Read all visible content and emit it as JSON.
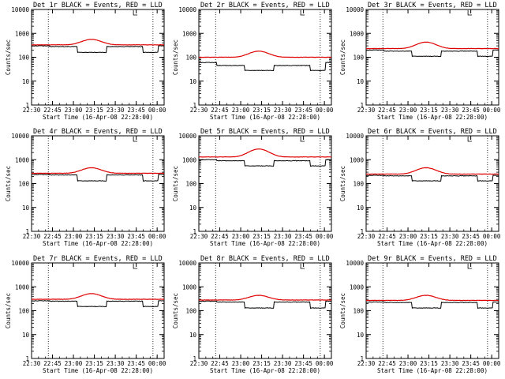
{
  "figure": {
    "xlabel": "Start Time (16-Apr-08 22:28:00)",
    "ylabel": "Counts/sec",
    "x_tick_labels": [
      "22:30",
      "22:45",
      "23:00",
      "23:15",
      "23:30",
      "23:45",
      "00:00"
    ],
    "y_tick_labels": [
      "1",
      "10",
      "100",
      "1000",
      "10000"
    ],
    "series_colors": {
      "events": "#000000",
      "lld": "#e00000"
    }
  },
  "chart_data": [
    {
      "type": "line",
      "title": "Det 1r BLACK = Events, RED = LLD",
      "y_log": true,
      "ylim": [
        1,
        10000
      ],
      "xlim": [
        "22:30",
        "00:05"
      ],
      "events": {
        "base": 300,
        "mid": 280,
        "dip": 160
      },
      "lld": {
        "base": 330,
        "peak": 560
      }
    },
    {
      "type": "line",
      "title": "Det 2r BLACK = Events, RED = LLD",
      "y_log": true,
      "ylim": [
        1,
        10000
      ],
      "xlim": [
        "22:30",
        "00:05"
      ],
      "events": {
        "base": 60,
        "mid": 45,
        "dip": 28
      },
      "lld": {
        "base": 100,
        "peak": 180
      }
    },
    {
      "type": "line",
      "title": "Det 3r BLACK = Events, RED = LLD",
      "y_log": true,
      "ylim": [
        1,
        10000
      ],
      "xlim": [
        "22:30",
        "00:05"
      ],
      "events": {
        "base": 200,
        "mid": 180,
        "dip": 110
      },
      "lld": {
        "base": 230,
        "peak": 430
      }
    },
    {
      "type": "line",
      "title": "Det 4r BLACK = Events, RED = LLD",
      "y_log": true,
      "ylim": [
        1,
        10000
      ],
      "xlim": [
        "22:30",
        "00:05"
      ],
      "events": {
        "base": 240,
        "mid": 230,
        "dip": 130
      },
      "lld": {
        "base": 270,
        "peak": 460
      }
    },
    {
      "type": "line",
      "title": "Det 5r BLACK = Events, RED = LLD",
      "y_log": true,
      "ylim": [
        1,
        10000
      ],
      "xlim": [
        "22:30",
        "00:05"
      ],
      "events": {
        "base": 1000,
        "mid": 900,
        "dip": 550
      },
      "lld": {
        "base": 1300,
        "peak": 2800
      }
    },
    {
      "type": "line",
      "title": "Det 6r BLACK = Events, RED = LLD",
      "y_log": true,
      "ylim": [
        1,
        10000
      ],
      "xlim": [
        "22:30",
        "00:05"
      ],
      "events": {
        "base": 220,
        "mid": 210,
        "dip": 130
      },
      "lld": {
        "base": 250,
        "peak": 460
      }
    },
    {
      "type": "line",
      "title": "Det 7r BLACK = Events, RED = LLD",
      "y_log": true,
      "ylim": [
        1,
        10000
      ],
      "xlim": [
        "22:30",
        "00:05"
      ],
      "events": {
        "base": 260,
        "mid": 250,
        "dip": 150
      },
      "lld": {
        "base": 300,
        "peak": 520
      }
    },
    {
      "type": "line",
      "title": "Det 8r BLACK = Events, RED = LLD",
      "y_log": true,
      "ylim": [
        1,
        10000
      ],
      "xlim": [
        "22:30",
        "00:05"
      ],
      "events": {
        "base": 250,
        "mid": 230,
        "dip": 130
      },
      "lld": {
        "base": 280,
        "peak": 440
      }
    },
    {
      "type": "line",
      "title": "Det 9r BLACK = Events, RED = LLD",
      "y_log": true,
      "ylim": [
        1,
        10000
      ],
      "xlim": [
        "22:30",
        "00:05"
      ],
      "events": {
        "base": 230,
        "mid": 220,
        "dip": 130
      },
      "lld": {
        "base": 270,
        "peak": 440
      }
    }
  ]
}
